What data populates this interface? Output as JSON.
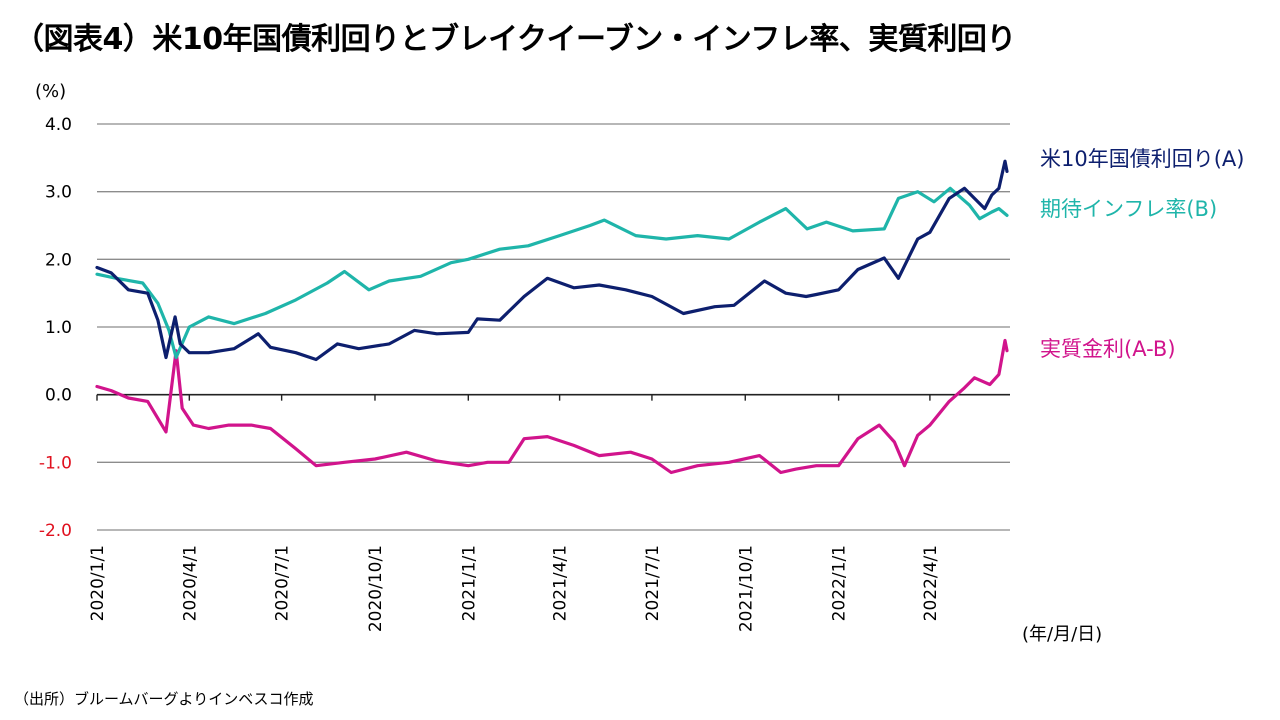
{
  "title": "（図表4）米10年国債利回りとブレイクイーブン・インフレ率、実質利回り",
  "source": "（出所）ブルームバーグよりインベスコ作成",
  "colors": {
    "us10y": "#0d1f6e",
    "breakeven": "#1fb5aa",
    "real": "#d1148c",
    "grid": "#8c8c8c",
    "negative_tick": "#e0101e"
  },
  "chart_data": {
    "type": "line",
    "y_unit": "(%)",
    "x_unit": "(年/月/日)",
    "ylim": [
      -2.0,
      4.0
    ],
    "grid": true,
    "y_ticks": [
      "4.0",
      "3.0",
      "2.0",
      "1.0",
      "0.0",
      "-1.0",
      "-2.0"
    ],
    "x_ticks": [
      "2020/1/1",
      "2020/4/1",
      "2020/7/1",
      "2020/10/1",
      "2021/1/1",
      "2021/4/1",
      "2021/7/1",
      "2021/10/1",
      "2022/1/1",
      "2022/4/1"
    ],
    "series": [
      {
        "name": "米10年国債利回り(A)",
        "color": "#0d1f6e",
        "points": [
          [
            "2020-01-01",
            1.88
          ],
          [
            "2020-01-15",
            1.8
          ],
          [
            "2020-02-01",
            1.55
          ],
          [
            "2020-02-20",
            1.5
          ],
          [
            "2020-03-01",
            1.1
          ],
          [
            "2020-03-09",
            0.55
          ],
          [
            "2020-03-18",
            1.15
          ],
          [
            "2020-03-23",
            0.75
          ],
          [
            "2020-04-01",
            0.62
          ],
          [
            "2020-04-20",
            0.62
          ],
          [
            "2020-05-15",
            0.68
          ],
          [
            "2020-06-08",
            0.9
          ],
          [
            "2020-06-20",
            0.7
          ],
          [
            "2020-07-15",
            0.62
          ],
          [
            "2020-08-04",
            0.52
          ],
          [
            "2020-08-25",
            0.75
          ],
          [
            "2020-09-15",
            0.68
          ],
          [
            "2020-10-15",
            0.75
          ],
          [
            "2020-11-09",
            0.95
          ],
          [
            "2020-12-01",
            0.9
          ],
          [
            "2021-01-01",
            0.92
          ],
          [
            "2021-01-10",
            1.12
          ],
          [
            "2021-02-01",
            1.1
          ],
          [
            "2021-02-25",
            1.45
          ],
          [
            "2021-03-20",
            1.72
          ],
          [
            "2021-04-15",
            1.58
          ],
          [
            "2021-05-10",
            1.62
          ],
          [
            "2021-06-05",
            1.55
          ],
          [
            "2021-07-01",
            1.45
          ],
          [
            "2021-08-01",
            1.2
          ],
          [
            "2021-09-01",
            1.3
          ],
          [
            "2021-09-20",
            1.32
          ],
          [
            "2021-10-20",
            1.68
          ],
          [
            "2021-11-10",
            1.5
          ],
          [
            "2021-11-30",
            1.45
          ],
          [
            "2021-12-10",
            1.48
          ],
          [
            "2022-01-01",
            1.55
          ],
          [
            "2022-01-20",
            1.85
          ],
          [
            "2022-02-15",
            2.02
          ],
          [
            "2022-03-01",
            1.72
          ],
          [
            "2022-03-20",
            2.3
          ],
          [
            "2022-04-01",
            2.4
          ],
          [
            "2022-04-20",
            2.9
          ],
          [
            "2022-05-05",
            3.05
          ],
          [
            "2022-05-25",
            2.75
          ],
          [
            "2022-06-01",
            2.95
          ],
          [
            "2022-06-08",
            3.05
          ],
          [
            "2022-06-14",
            3.45
          ],
          [
            "2022-06-16",
            3.3
          ]
        ]
      },
      {
        "name": "期待インフレ率(B)",
        "color": "#1fb5aa",
        "points": [
          [
            "2020-01-01",
            1.78
          ],
          [
            "2020-01-20",
            1.72
          ],
          [
            "2020-02-15",
            1.65
          ],
          [
            "2020-03-01",
            1.35
          ],
          [
            "2020-03-12",
            0.95
          ],
          [
            "2020-03-19",
            0.55
          ],
          [
            "2020-04-01",
            1.0
          ],
          [
            "2020-04-20",
            1.15
          ],
          [
            "2020-05-15",
            1.05
          ],
          [
            "2020-06-15",
            1.2
          ],
          [
            "2020-07-15",
            1.4
          ],
          [
            "2020-08-15",
            1.65
          ],
          [
            "2020-09-01",
            1.82
          ],
          [
            "2020-09-25",
            1.55
          ],
          [
            "2020-10-15",
            1.68
          ],
          [
            "2020-11-15",
            1.75
          ],
          [
            "2020-12-15",
            1.95
          ],
          [
            "2021-01-01",
            2.0
          ],
          [
            "2021-02-01",
            2.15
          ],
          [
            "2021-03-01",
            2.2
          ],
          [
            "2021-04-01",
            2.35
          ],
          [
            "2021-05-01",
            2.5
          ],
          [
            "2021-05-15",
            2.58
          ],
          [
            "2021-06-15",
            2.35
          ],
          [
            "2021-07-15",
            2.3
          ],
          [
            "2021-08-15",
            2.35
          ],
          [
            "2021-09-15",
            2.3
          ],
          [
            "2021-10-15",
            2.55
          ],
          [
            "2021-11-10",
            2.75
          ],
          [
            "2021-12-01",
            2.45
          ],
          [
            "2021-12-20",
            2.55
          ],
          [
            "2022-01-15",
            2.42
          ],
          [
            "2022-02-15",
            2.45
          ],
          [
            "2022-03-01",
            2.9
          ],
          [
            "2022-03-20",
            3.0
          ],
          [
            "2022-04-05",
            2.85
          ],
          [
            "2022-04-21",
            3.05
          ],
          [
            "2022-05-10",
            2.8
          ],
          [
            "2022-05-20",
            2.6
          ],
          [
            "2022-06-01",
            2.7
          ],
          [
            "2022-06-08",
            2.75
          ],
          [
            "2022-06-16",
            2.65
          ]
        ]
      },
      {
        "name": "実質金利(A-B)",
        "color": "#d1148c",
        "points": [
          [
            "2020-01-01",
            0.12
          ],
          [
            "2020-01-15",
            0.06
          ],
          [
            "2020-02-01",
            -0.05
          ],
          [
            "2020-02-20",
            -0.1
          ],
          [
            "2020-03-09",
            -0.55
          ],
          [
            "2020-03-19",
            0.65
          ],
          [
            "2020-03-25",
            -0.2
          ],
          [
            "2020-04-05",
            -0.45
          ],
          [
            "2020-04-20",
            -0.5
          ],
          [
            "2020-05-10",
            -0.45
          ],
          [
            "2020-06-01",
            -0.45
          ],
          [
            "2020-06-20",
            -0.5
          ],
          [
            "2020-07-15",
            -0.8
          ],
          [
            "2020-08-04",
            -1.05
          ],
          [
            "2020-09-01",
            -1.0
          ],
          [
            "2020-10-01",
            -0.95
          ],
          [
            "2020-11-01",
            -0.85
          ],
          [
            "2020-12-01",
            -0.98
          ],
          [
            "2021-01-01",
            -1.05
          ],
          [
            "2021-01-20",
            -1.0
          ],
          [
            "2021-02-10",
            -1.0
          ],
          [
            "2021-02-25",
            -0.65
          ],
          [
            "2021-03-20",
            -0.62
          ],
          [
            "2021-04-15",
            -0.75
          ],
          [
            "2021-05-10",
            -0.9
          ],
          [
            "2021-06-10",
            -0.85
          ],
          [
            "2021-07-01",
            -0.95
          ],
          [
            "2021-07-20",
            -1.15
          ],
          [
            "2021-08-15",
            -1.05
          ],
          [
            "2021-09-15",
            -1.0
          ],
          [
            "2021-10-15",
            -0.9
          ],
          [
            "2021-11-05",
            -1.15
          ],
          [
            "2021-11-20",
            -1.1
          ],
          [
            "2021-12-10",
            -1.05
          ],
          [
            "2022-01-01",
            -1.05
          ],
          [
            "2022-01-20",
            -0.65
          ],
          [
            "2022-02-10",
            -0.45
          ],
          [
            "2022-02-25",
            -0.7
          ],
          [
            "2022-03-07",
            -1.05
          ],
          [
            "2022-03-20",
            -0.6
          ],
          [
            "2022-04-01",
            -0.45
          ],
          [
            "2022-04-20",
            -0.1
          ],
          [
            "2022-05-05",
            0.1
          ],
          [
            "2022-05-15",
            0.25
          ],
          [
            "2022-05-30",
            0.15
          ],
          [
            "2022-06-08",
            0.3
          ],
          [
            "2022-06-14",
            0.8
          ],
          [
            "2022-06-16",
            0.65
          ]
        ]
      }
    ]
  }
}
